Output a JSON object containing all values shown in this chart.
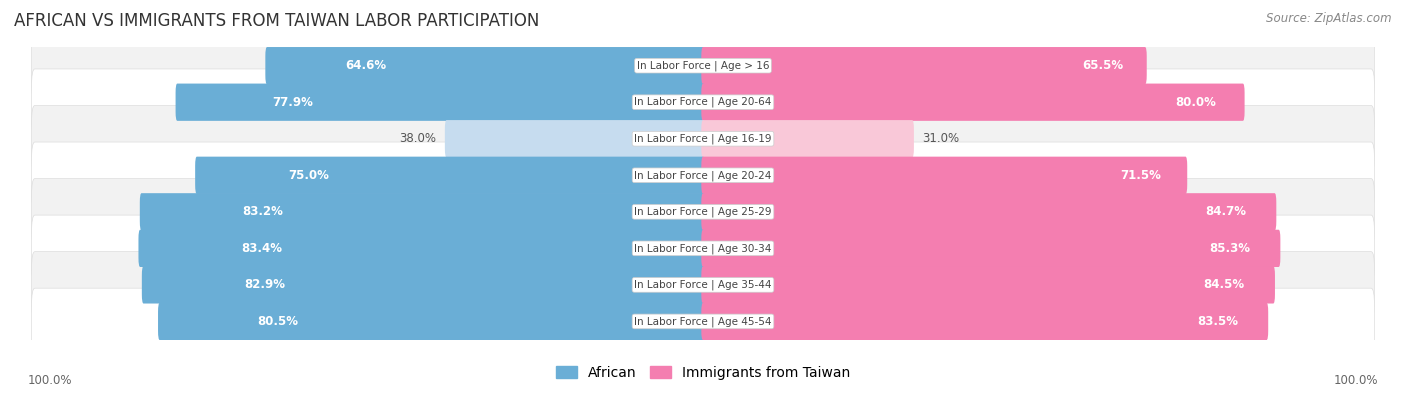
{
  "title": "AFRICAN VS IMMIGRANTS FROM TAIWAN LABOR PARTICIPATION",
  "source": "Source: ZipAtlas.com",
  "categories": [
    "In Labor Force | Age > 16",
    "In Labor Force | Age 20-64",
    "In Labor Force | Age 16-19",
    "In Labor Force | Age 20-24",
    "In Labor Force | Age 25-29",
    "In Labor Force | Age 30-34",
    "In Labor Force | Age 35-44",
    "In Labor Force | Age 45-54"
  ],
  "african_values": [
    64.6,
    77.9,
    38.0,
    75.0,
    83.2,
    83.4,
    82.9,
    80.5
  ],
  "taiwan_values": [
    65.5,
    80.0,
    31.0,
    71.5,
    84.7,
    85.3,
    84.5,
    83.5
  ],
  "african_color": "#6aaed6",
  "african_color_light": "#c6dcef",
  "taiwan_color": "#f47eb0",
  "taiwan_color_light": "#f9c8d8",
  "row_bg_color_odd": "#f2f2f2",
  "row_bg_color_even": "#ffffff",
  "max_value": 100.0,
  "title_fontsize": 12,
  "legend_fontsize": 10,
  "value_fontsize": 8.5,
  "cat_fontsize": 7.5,
  "axis_label_left": "100.0%",
  "axis_label_right": "100.0%"
}
